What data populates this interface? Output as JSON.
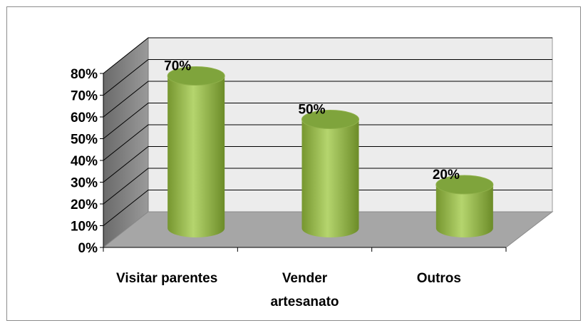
{
  "chart_data": {
    "type": "bar",
    "style": "3d-cylinder",
    "categories": [
      "Visitar parentes",
      "Vender artesanato",
      "Outros"
    ],
    "category_lines": [
      [
        "Visitar parentes"
      ],
      [
        "Vender",
        "artesanato"
      ],
      [
        "Outros"
      ]
    ],
    "values": [
      70,
      50,
      20
    ],
    "data_labels": [
      "70%",
      "50%",
      "20%"
    ],
    "ylim": [
      0,
      80
    ],
    "y_ticks": [
      "0%",
      "10%",
      "20%",
      "30%",
      "40%",
      "50%",
      "60%",
      "70%",
      "80%"
    ],
    "title": "",
    "xlabel": "",
    "ylabel": "",
    "grid": true,
    "legend": "none",
    "colors": {
      "bar": "#9bbb59",
      "bar_dark": "#6f8e2e",
      "bar_top": "#7fa43c",
      "wall": "#ececec",
      "side_wall": "#7f7f7f",
      "floor": "#a6a6a6",
      "grid": "#000000"
    }
  }
}
